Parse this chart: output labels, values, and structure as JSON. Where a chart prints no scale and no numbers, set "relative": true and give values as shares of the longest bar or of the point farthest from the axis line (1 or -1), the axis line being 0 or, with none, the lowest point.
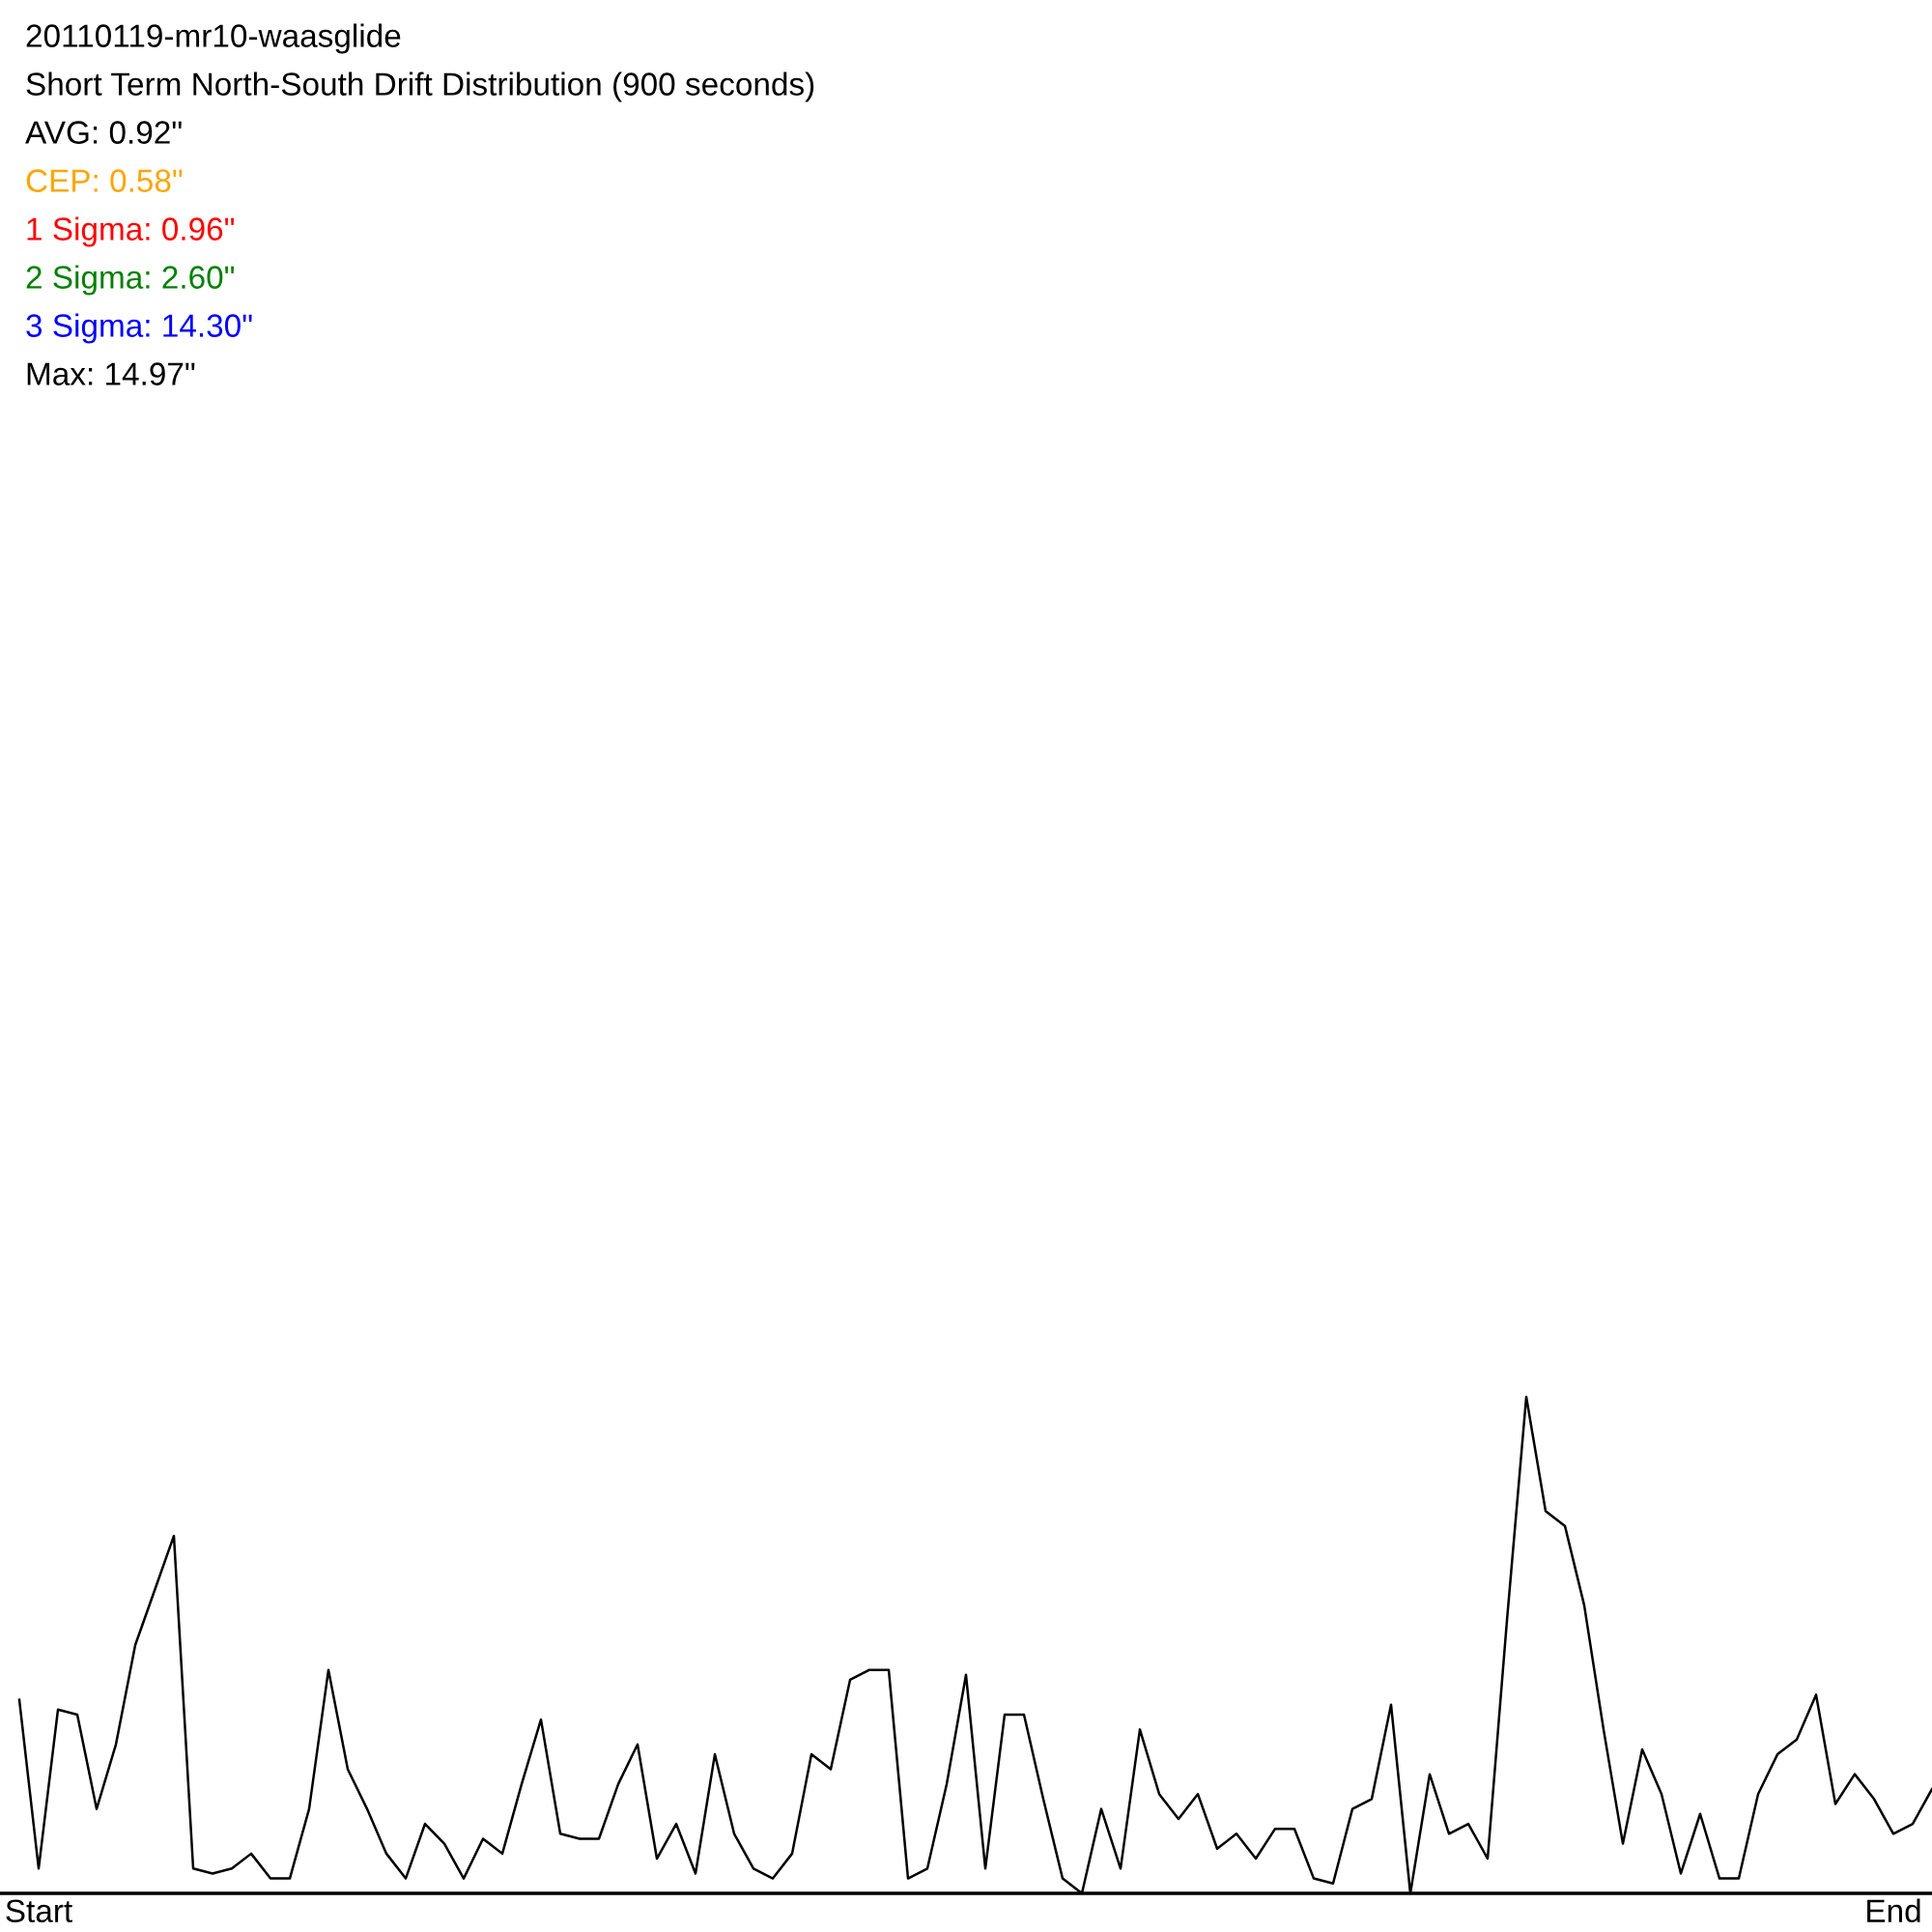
{
  "chart_data": {
    "type": "line",
    "title": "20110119-mr10-waasglide",
    "subtitle": "Short Term North-South Drift Distribution (900 seconds)",
    "annotations": [
      "AVG: 0.92\"",
      "CEP: 0.58\"",
      "1 Sigma: 0.96\"",
      "2 Sigma: 2.60\"",
      "3 Sigma: 14.30\"",
      "Max: 14.97\""
    ],
    "relative": true,
    "grid": false,
    "legend": false,
    "marker": "none",
    "line_style": "solid",
    "categories": [
      null,
      "Start",
      null,
      null,
      null,
      null,
      null,
      null,
      null,
      null,
      null,
      null,
      null,
      null,
      null,
      null,
      null,
      null,
      null,
      null,
      null,
      null,
      null,
      null,
      null,
      null,
      null,
      null,
      null,
      null,
      null,
      null,
      null,
      null,
      null,
      null,
      null,
      null,
      null,
      null,
      null,
      null,
      null,
      null,
      null,
      null,
      null,
      null,
      null,
      null,
      null,
      null,
      null,
      null,
      null,
      null,
      null,
      null,
      null,
      null,
      null,
      null,
      null,
      null,
      null,
      null,
      null,
      null,
      null,
      null,
      null,
      null,
      null,
      null,
      null,
      null,
      null,
      null,
      null,
      null,
      null,
      null,
      null,
      null,
      null,
      null,
      null,
      null,
      null,
      null,
      null,
      null,
      null,
      null,
      null,
      null,
      null,
      "End",
      null,
      null
    ],
    "series": [
      {
        "color": "#000000",
        "values": [
          0.39,
          0.05,
          0.37,
          0.36,
          0.17,
          0.3,
          0.5,
          0.61,
          0.72,
          0.05,
          0.04,
          0.05,
          0.08,
          0.03,
          0.03,
          0.17,
          0.45,
          0.25,
          0.17,
          0.08,
          0.03,
          0.14,
          0.1,
          0.03,
          0.11,
          0.08,
          0.22,
          0.35,
          0.12,
          0.11,
          0.11,
          0.22,
          0.3,
          0.07,
          0.14,
          0.04,
          0.28,
          0.12,
          0.05,
          0.03,
          0.08,
          0.28,
          0.25,
          0.43,
          0.45,
          0.45,
          0.03,
          0.05,
          0.22,
          0.44,
          0.05,
          0.36,
          0.36,
          0.19,
          0.03,
          0.0,
          0.17,
          0.05,
          0.33,
          0.2,
          0.15,
          0.2,
          0.09,
          0.12,
          0.07,
          0.13,
          0.13,
          0.03,
          0.02,
          0.17,
          0.19,
          0.38,
          0.0,
          0.24,
          0.12,
          0.14,
          0.07,
          0.55,
          1.0,
          0.77,
          0.74,
          0.58,
          0.33,
          0.1,
          0.29,
          0.2,
          0.04,
          0.16,
          0.03,
          0.03,
          0.2,
          0.28,
          0.31,
          0.4,
          0.18,
          0.24,
          0.19,
          0.12,
          0.14,
          0.21
        ]
      }
    ]
  }
}
